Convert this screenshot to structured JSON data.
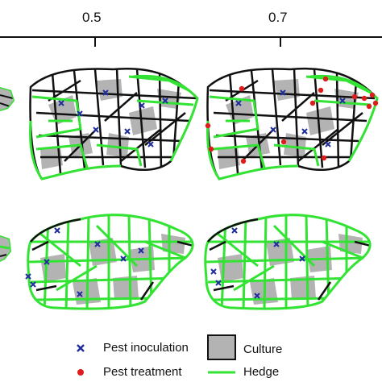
{
  "axis": {
    "ticks": [
      {
        "label": "0.5"
      },
      {
        "label": "0.7"
      }
    ]
  },
  "legend": {
    "items": [
      {
        "marker": "x-mark",
        "label": "Pest inoculation",
        "color": "#1f2d9c"
      },
      {
        "marker": "gray-square",
        "label": "Culture",
        "color": "#b3b3b3"
      },
      {
        "marker": "red-dot",
        "label": "Pest treatment",
        "color": "#e01b1b"
      },
      {
        "marker": "green-line",
        "label": "Hedge",
        "color": "#33e333"
      }
    ]
  },
  "colors": {
    "hedge": "#33e333",
    "parcel_border": "#111111",
    "culture": "#b3b3b3",
    "inoculation": "#1f2d9c",
    "treatment": "#e01b1b"
  }
}
